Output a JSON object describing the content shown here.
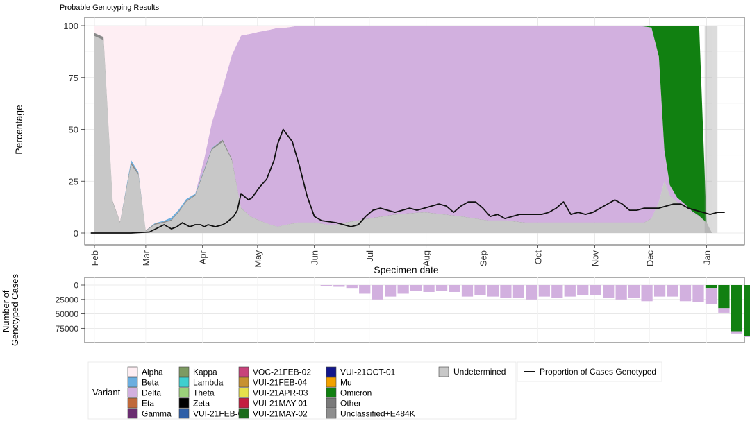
{
  "chart_data": [
    {
      "type": "area",
      "title": "Probable Genotyping Results",
      "xlabel": "Specimen date",
      "ylabel": "Percentage",
      "ylim": [
        0,
        100
      ],
      "yticks": [
        0,
        25,
        50,
        75,
        100
      ],
      "xticks": [
        "Feb",
        "Mar",
        "Apr",
        "May",
        "Jun",
        "Jul",
        "Aug",
        "Sep",
        "Oct",
        "Nov",
        "Dec",
        "Jan"
      ],
      "x_day": [
        0,
        5,
        10,
        14,
        20,
        24,
        28,
        33,
        38,
        42,
        46,
        50,
        55,
        60,
        64,
        70,
        75,
        80,
        85,
        90,
        96,
        100,
        105,
        111,
        116,
        121,
        127,
        132,
        137,
        150,
        165,
        180,
        200,
        215,
        225,
        235,
        245,
        255,
        265,
        275,
        285,
        295,
        300,
        304,
        308,
        311,
        314,
        318,
        322,
        326,
        330,
        334,
        337,
        340
      ],
      "series": [
        {
          "name": "Undetermined",
          "values": [
            95,
            93,
            15,
            5,
            33,
            28,
            1,
            4,
            5,
            6,
            10,
            15,
            18,
            30,
            40,
            44,
            35,
            12,
            8,
            6,
            4,
            3,
            4,
            5,
            5,
            5,
            4,
            4,
            5,
            7,
            9,
            10,
            8,
            6,
            6,
            5,
            5,
            5,
            5,
            5,
            5,
            5,
            5,
            7,
            15,
            25,
            18,
            15,
            13,
            10,
            8,
            5,
            0,
            0
          ]
        },
        {
          "name": "Other",
          "values": [
            1.5,
            1.5,
            0.5,
            0.5,
            1,
            1,
            0.3,
            0.5,
            0.5,
            0.5,
            0.5,
            0.5,
            0.5,
            0.8,
            0.8,
            1,
            0.8,
            0.2,
            0.1,
            0.1,
            0.1,
            0.1,
            0.1,
            0.1,
            0.1,
            0.1,
            0.1,
            0.1,
            0.1,
            0.1,
            0.1,
            0.1,
            0.1,
            0.1,
            0.1,
            0.1,
            0.1,
            0.1,
            0.1,
            0.1,
            0.1,
            0.1,
            0.1,
            0.1,
            0.1,
            0.1,
            0.1,
            0.1,
            0.1,
            0.1,
            0.1,
            0.1,
            0,
            0
          ]
        },
        {
          "name": "Beta",
          "values": [
            0,
            0,
            0,
            0,
            1.2,
            0.5,
            0,
            0.3,
            0.5,
            1,
            0.8,
            0.8,
            0.5,
            0.3,
            0.2,
            0.1,
            0,
            0,
            0,
            0,
            0,
            0,
            0,
            0,
            0,
            0,
            0,
            0,
            0,
            0,
            0,
            0,
            0,
            0,
            0,
            0,
            0,
            0,
            0,
            0,
            0,
            0,
            0,
            0,
            0,
            0,
            0,
            0,
            0,
            0,
            0,
            0,
            0,
            0
          ]
        },
        {
          "name": "Delta",
          "values": [
            0,
            0,
            0,
            0,
            0,
            0,
            0,
            0,
            0,
            0,
            0,
            0,
            0,
            5,
            12,
            25,
            50,
            83,
            88,
            91,
            94,
            95.8,
            95,
            94.8,
            94.8,
            94.8,
            95.8,
            95.8,
            94.8,
            92.8,
            90.8,
            89.8,
            91.8,
            93.8,
            93.8,
            94.8,
            94.8,
            94.8,
            94.8,
            94.8,
            94.8,
            94.8,
            94.5,
            92,
            70,
            15,
            5,
            2,
            1,
            0.5,
            0.2,
            0,
            0,
            0
          ]
        },
        {
          "name": "Omicron",
          "values": [
            0,
            0,
            0,
            0,
            0,
            0,
            0,
            0,
            0,
            0,
            0,
            0,
            0,
            0,
            0,
            0,
            0,
            0,
            0,
            0,
            0,
            0,
            0,
            0,
            0,
            0,
            0,
            0,
            0,
            0,
            0,
            0,
            0,
            0,
            0,
            0,
            0,
            0,
            0,
            0,
            0,
            0,
            0.4,
            0.9,
            14.9,
            59.9,
            76.9,
            82.9,
            85.9,
            89.4,
            91.7,
            0,
            0,
            0
          ]
        },
        {
          "name": "Alpha",
          "values": [
            3.5,
            5.5,
            84.5,
            94.5,
            64.8,
            70.5,
            98.7,
            95.2,
            94,
            92.5,
            88.7,
            83.7,
            81,
            63.9,
            47,
            29.9,
            14.2,
            4.8,
            3.9,
            2.9,
            1.9,
            1.1,
            0.9,
            0.1,
            0.1,
            0.1,
            0.1,
            0.1,
            0.1,
            0.1,
            0.1,
            0.1,
            0.1,
            0.1,
            0.1,
            0.1,
            0.1,
            0.1,
            0.1,
            0.1,
            0.1,
            0.1,
            0,
            0,
            0,
            0,
            0,
            0,
            0,
            0,
            0,
            0,
            0,
            0
          ]
        }
      ],
      "overlay_shading": [
        {
          "from_day": 333,
          "to_day": 337,
          "value": 100
        }
      ],
      "line": {
        "name": "Proportion of Cases Genotyped",
        "x_day": [
          -2,
          10,
          20,
          30,
          38,
          42,
          45,
          48,
          52,
          55,
          58,
          60,
          62,
          66,
          70,
          72,
          76,
          78,
          80,
          84,
          86,
          90,
          94,
          98,
          100,
          103,
          108,
          112,
          116,
          120,
          124,
          128,
          132,
          136,
          140,
          144,
          148,
          152,
          156,
          160,
          164,
          168,
          172,
          176,
          180,
          184,
          188,
          192,
          196,
          200,
          204,
          208,
          212,
          216,
          220,
          224,
          228,
          232,
          236,
          240,
          244,
          248,
          252,
          256,
          260,
          264,
          268,
          272,
          276,
          280,
          284,
          288,
          292,
          296,
          300,
          304,
          308,
          312,
          316,
          320,
          324,
          328,
          332,
          336,
          340,
          344
        ],
        "values": [
          0,
          0,
          0,
          0.5,
          4,
          2,
          3,
          5,
          3,
          4,
          4,
          3,
          4,
          3,
          4,
          5,
          8,
          11,
          19,
          16,
          17,
          22,
          26,
          35,
          43,
          50,
          44,
          32,
          18,
          8,
          6,
          5.5,
          5,
          4,
          3,
          4,
          8,
          11,
          12,
          11,
          10,
          11,
          12,
          11,
          12,
          13,
          14,
          13,
          10,
          13,
          15,
          15,
          12,
          8,
          9,
          7,
          8,
          9,
          9,
          9,
          9,
          10,
          12,
          15,
          9,
          10,
          9,
          10,
          12,
          14,
          16,
          14,
          11,
          11,
          12,
          12,
          12,
          13,
          14,
          14,
          12,
          11,
          10,
          9,
          10,
          10
        ]
      }
    },
    {
      "type": "bar",
      "ylabel": "Number of\nGenotyped Cases",
      "ylabel_lines": [
        "Number of",
        "Genotyped Cases"
      ],
      "yticks": [
        0,
        25000,
        50000,
        75000
      ],
      "ytick_labels": [
        "0",
        "25000",
        "50000",
        "75000"
      ],
      "ylim": [
        0,
        100000
      ],
      "orientation": "downward",
      "week_start_day": [
        123,
        130,
        137,
        144,
        151,
        158,
        165,
        172,
        179,
        186,
        193,
        200,
        207,
        214,
        221,
        228,
        235,
        242,
        249,
        256,
        263,
        270,
        277,
        284,
        291,
        298,
        305,
        312,
        319,
        326,
        333
      ],
      "series": [
        {
          "name": "Delta",
          "values": [
            1200,
            3000,
            5000,
            15000,
            25000,
            20000,
            15000,
            10000,
            12000,
            10000,
            12000,
            20000,
            18000,
            20000,
            22000,
            22000,
            25000,
            20000,
            22000,
            20000,
            17000,
            17000,
            22000,
            25000,
            22000,
            28000,
            20000,
            20000,
            28000,
            45000,
            28000
          ]
        },
        {
          "name": "Omicron",
          "values": [
            0,
            0,
            0,
            0,
            0,
            0,
            0,
            0,
            0,
            0,
            0,
            0,
            0,
            0,
            0,
            0,
            0,
            0,
            0,
            0,
            0,
            0,
            0,
            0,
            0,
            0,
            0,
            0,
            0,
            0,
            0
          ]
        },
        {
          "name": "Omicron_late",
          "values": []
        }
      ],
      "extra_bars": [
        {
          "start_day": 326,
          "delta": 30000,
          "omicron": 0
        },
        {
          "start_day": 333,
          "delta": 28000,
          "omicron": 5000
        },
        {
          "start_day": 340,
          "delta": 8000,
          "omicron": 40000
        },
        {
          "start_day": 347,
          "delta": 4000,
          "omicron": 80000
        },
        {
          "start_day": 354,
          "delta": 2000,
          "omicron": 88000
        },
        {
          "start_day": 361,
          "delta": 1000,
          "omicron": 78000
        }
      ]
    }
  ],
  "legend": {
    "title": "Variant",
    "columns": [
      [
        {
          "label": "Alpha",
          "color": "#FEEEF3"
        },
        {
          "label": "Beta",
          "color": "#6BAEDF"
        },
        {
          "label": "Delta",
          "color": "#D2B0DF"
        },
        {
          "label": "Eta",
          "color": "#C0693B"
        },
        {
          "label": "Gamma",
          "color": "#6A2D70"
        }
      ],
      [
        {
          "label": "Kappa",
          "color": "#7D9A62"
        },
        {
          "label": "Lambda",
          "color": "#3FCFCF"
        },
        {
          "label": "Theta",
          "color": "#9CD17B"
        },
        {
          "label": "Zeta",
          "color": "#000000"
        },
        {
          "label": "VUI-21FEB-01",
          "color": "#2F5FA7"
        }
      ],
      [
        {
          "label": "VOC-21FEB-02",
          "color": "#C8437B"
        },
        {
          "label": "VUI-21FEB-04",
          "color": "#C79231"
        },
        {
          "label": "VUI-21APR-03",
          "color": "#E6E04B"
        },
        {
          "label": "VUI-21MAY-01",
          "color": "#C41E40"
        },
        {
          "label": "VUI-21MAY-02",
          "color": "#1C6B1C"
        }
      ],
      [
        {
          "label": "VUI-21OCT-01",
          "color": "#13178C"
        },
        {
          "label": "Mu",
          "color": "#F2A100"
        },
        {
          "label": "Omicron",
          "color": "#118011"
        },
        {
          "label": "Other",
          "color": "#7A7A7A"
        },
        {
          "label": "Unclassified+E484K",
          "color": "#8E8E8E"
        }
      ]
    ],
    "undetermined": {
      "label": "Undetermined",
      "color": "#C8C8C8"
    },
    "line_label": "Proportion of Cases Genotyped"
  },
  "colors": {
    "Alpha": "#FEEEF3",
    "Beta": "#6BAEDF",
    "Delta": "#D2B0DF",
    "Omicron": "#118011",
    "Undetermined": "#C8C8C8",
    "Other": "#8A8A8A",
    "line": "#111111",
    "grid_major": "#E4E4E4",
    "grid_minor": "#F1F1F1"
  }
}
